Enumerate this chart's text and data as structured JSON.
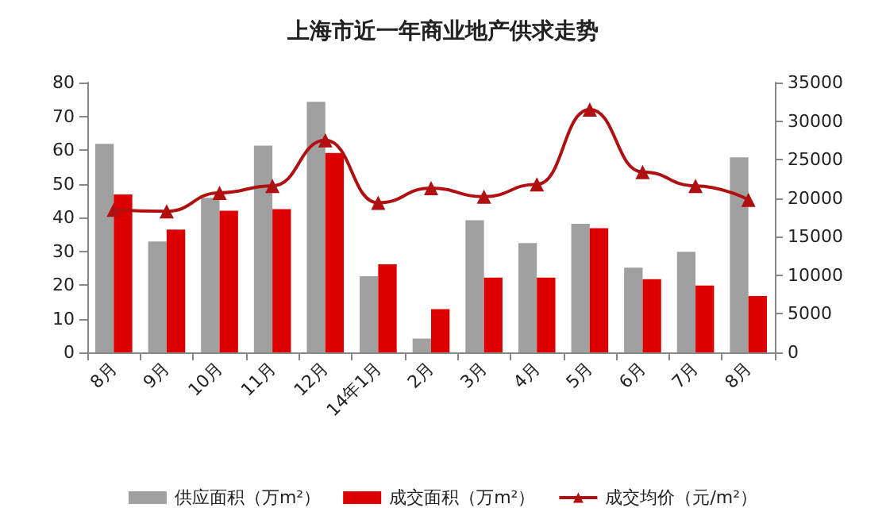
{
  "chart_data": {
    "type": "bar",
    "title": "上海市近一年商业地产供求走势",
    "categories": [
      "8月",
      "9月",
      "10月",
      "11月",
      "12月",
      "14年1月",
      "2月",
      "3月",
      "4月",
      "5月",
      "6月",
      "7月",
      "8月"
    ],
    "series": [
      {
        "name": "供应面积（万m²）",
        "color": "#a0a0a0",
        "values": [
          61.8,
          32.9,
          45.8,
          61.3,
          74.3,
          22.6,
          4.1,
          39.2,
          32.4,
          38.1,
          25.1,
          29.8,
          57.8
        ]
      },
      {
        "name": "成交面积（万m²）",
        "color": "#dd0000",
        "values": [
          46.8,
          36.4,
          42,
          42.5,
          59.1,
          26.1,
          12.8,
          22.2,
          22.2,
          36.8,
          21.7,
          19.8,
          16.7
        ]
      },
      {
        "name": "成交均价（元/m²）",
        "type": "line",
        "axis": "y2",
        "color": "#b01010",
        "values": [
          18500,
          18300,
          20700,
          21600,
          27500,
          19400,
          21300,
          20200,
          21800,
          31500,
          23400,
          21600,
          19800
        ]
      }
    ],
    "ylim": [
      0,
      80
    ],
    "yticks": [
      0,
      10,
      20,
      30,
      40,
      50,
      60,
      70,
      80
    ],
    "y2lim": [
      0,
      35000
    ],
    "y2ticks": [
      0,
      5000,
      10000,
      15000,
      20000,
      25000,
      30000,
      35000
    ],
    "marker": "triangle",
    "grid": false,
    "legend": "bottom"
  }
}
